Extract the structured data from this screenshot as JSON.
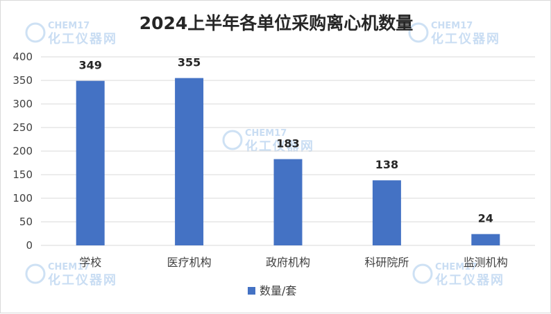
{
  "chart_data": {
    "type": "bar",
    "title": "2024上半年各单位采购离心机数量",
    "categories": [
      "学校",
      "医疗机构",
      "政府机构",
      "科研院所",
      "监测机构"
    ],
    "series": [
      {
        "name": "数量/套",
        "values": [
          349,
          355,
          183,
          138,
          24
        ],
        "color": "#4472C4"
      }
    ],
    "ylim": [
      0,
      400
    ],
    "yticks": [
      0,
      50,
      100,
      150,
      200,
      250,
      300,
      350,
      400
    ],
    "grid": true,
    "legend": "bottom"
  },
  "watermark": {
    "brand": "CHEM17",
    "name": "化工仪器网"
  }
}
